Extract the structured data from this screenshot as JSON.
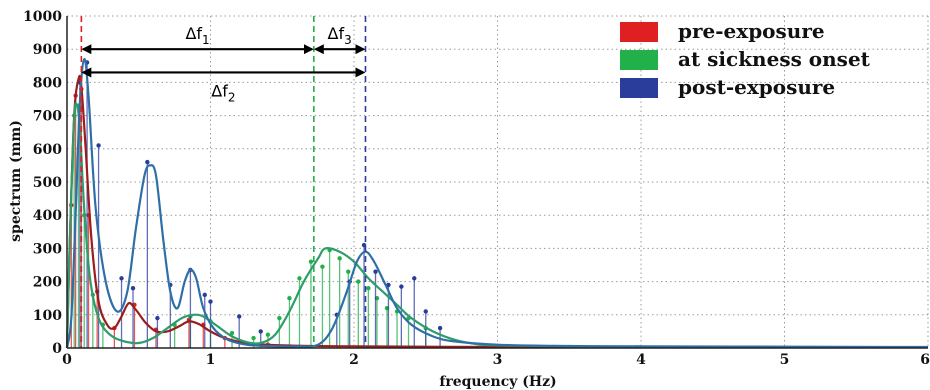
{
  "chart_data": {
    "type": "line",
    "xlabel": "frequency (Hz)",
    "ylabel": "spectrum (mm)",
    "xlim": [
      0,
      6
    ],
    "ylim": [
      0,
      1000
    ],
    "xticks": [
      "0",
      "1",
      "2",
      "3",
      "4",
      "5",
      "6"
    ],
    "yticks": [
      "0",
      "100",
      "200",
      "300",
      "400",
      "500",
      "600",
      "700",
      "800",
      "900",
      "1000"
    ],
    "grid": "dotted",
    "legend_position": "top-right",
    "series": [
      {
        "name": "pre-exposure",
        "color": "#e02020",
        "curve_color": "#9b1c1c",
        "peak_marker_x": 0.1,
        "curve": [
          [
            0,
            0
          ],
          [
            0.02,
            330
          ],
          [
            0.05,
            700
          ],
          [
            0.08,
            810
          ],
          [
            0.1,
            790
          ],
          [
            0.13,
            600
          ],
          [
            0.17,
            330
          ],
          [
            0.22,
            140
          ],
          [
            0.28,
            70
          ],
          [
            0.33,
            60
          ],
          [
            0.38,
            95
          ],
          [
            0.43,
            135
          ],
          [
            0.48,
            115
          ],
          [
            0.55,
            75
          ],
          [
            0.62,
            50
          ],
          [
            0.7,
            50
          ],
          [
            0.78,
            65
          ],
          [
            0.85,
            80
          ],
          [
            0.92,
            72
          ],
          [
            1.0,
            50
          ],
          [
            1.1,
            30
          ],
          [
            1.25,
            15
          ],
          [
            1.5,
            8
          ],
          [
            2.0,
            5
          ],
          [
            3.0,
            3
          ],
          [
            4.0,
            3
          ],
          [
            5.0,
            2
          ],
          [
            6.0,
            2
          ]
        ],
        "stems": [
          [
            0.03,
            430
          ],
          [
            0.06,
            760
          ],
          [
            0.1,
            780
          ],
          [
            0.15,
            400
          ],
          [
            0.21,
            170
          ],
          [
            0.33,
            60
          ],
          [
            0.47,
            130
          ],
          [
            0.62,
            55
          ],
          [
            0.85,
            85
          ],
          [
            0.95,
            70
          ],
          [
            1.1,
            30
          ],
          [
            1.4,
            10
          ]
        ]
      },
      {
        "name": "at sickness onset",
        "color": "#22b04a",
        "curve_color": "#2e9d6a",
        "peak_marker_x": 1.72,
        "curve": [
          [
            0,
            0
          ],
          [
            0.02,
            330
          ],
          [
            0.05,
            690
          ],
          [
            0.07,
            730
          ],
          [
            0.09,
            660
          ],
          [
            0.12,
            420
          ],
          [
            0.16,
            210
          ],
          [
            0.22,
            90
          ],
          [
            0.3,
            40
          ],
          [
            0.4,
            20
          ],
          [
            0.5,
            15
          ],
          [
            0.6,
            30
          ],
          [
            0.7,
            60
          ],
          [
            0.8,
            90
          ],
          [
            0.88,
            100
          ],
          [
            0.95,
            95
          ],
          [
            1.05,
            65
          ],
          [
            1.15,
            35
          ],
          [
            1.25,
            18
          ],
          [
            1.35,
            15
          ],
          [
            1.45,
            40
          ],
          [
            1.55,
            110
          ],
          [
            1.65,
            200
          ],
          [
            1.75,
            270
          ],
          [
            1.8,
            300
          ],
          [
            1.9,
            290
          ],
          [
            2.0,
            260
          ],
          [
            2.1,
            210
          ],
          [
            2.2,
            170
          ],
          [
            2.3,
            130
          ],
          [
            2.4,
            90
          ],
          [
            2.55,
            50
          ],
          [
            2.7,
            25
          ],
          [
            2.85,
            12
          ],
          [
            3.0,
            8
          ],
          [
            3.5,
            5
          ],
          [
            4.0,
            4
          ],
          [
            5.0,
            3
          ],
          [
            6.0,
            2
          ]
        ],
        "stems": [
          [
            0.05,
            700
          ],
          [
            0.08,
            730
          ],
          [
            0.12,
            400
          ],
          [
            0.18,
            160
          ],
          [
            0.25,
            70
          ],
          [
            0.75,
            70
          ],
          [
            0.86,
            95
          ],
          [
            1.0,
            80
          ],
          [
            1.15,
            45
          ],
          [
            1.3,
            30
          ],
          [
            1.4,
            40
          ],
          [
            1.48,
            90
          ],
          [
            1.55,
            150
          ],
          [
            1.62,
            210
          ],
          [
            1.7,
            260
          ],
          [
            1.78,
            245
          ],
          [
            1.83,
            295
          ],
          [
            1.9,
            270
          ],
          [
            1.96,
            230
          ],
          [
            2.03,
            200
          ],
          [
            2.1,
            180
          ],
          [
            2.16,
            150
          ],
          [
            2.23,
            120
          ],
          [
            2.3,
            110
          ],
          [
            2.38,
            90
          ],
          [
            2.5,
            60
          ]
        ]
      },
      {
        "name": "post-exposure",
        "color": "#2b3d9b",
        "curve_color": "#2f6fa8",
        "peak_marker_x": 2.08,
        "curve": [
          [
            0,
            0
          ],
          [
            0.03,
            90
          ],
          [
            0.06,
            400
          ],
          [
            0.09,
            740
          ],
          [
            0.12,
            870
          ],
          [
            0.15,
            760
          ],
          [
            0.2,
            420
          ],
          [
            0.27,
            200
          ],
          [
            0.35,
            110
          ],
          [
            0.42,
            170
          ],
          [
            0.48,
            360
          ],
          [
            0.54,
            520
          ],
          [
            0.58,
            550
          ],
          [
            0.62,
            520
          ],
          [
            0.67,
            330
          ],
          [
            0.72,
            170
          ],
          [
            0.77,
            120
          ],
          [
            0.82,
            200
          ],
          [
            0.86,
            235
          ],
          [
            0.9,
            210
          ],
          [
            0.95,
            120
          ],
          [
            1.02,
            60
          ],
          [
            1.12,
            25
          ],
          [
            1.25,
            10
          ],
          [
            1.4,
            6
          ],
          [
            1.6,
            5
          ],
          [
            1.75,
            10
          ],
          [
            1.85,
            60
          ],
          [
            1.95,
            170
          ],
          [
            2.02,
            260
          ],
          [
            2.08,
            290
          ],
          [
            2.14,
            260
          ],
          [
            2.22,
            190
          ],
          [
            2.3,
            120
          ],
          [
            2.4,
            70
          ],
          [
            2.55,
            35
          ],
          [
            2.7,
            20
          ],
          [
            3.0,
            10
          ],
          [
            3.5,
            6
          ],
          [
            4.0,
            5
          ],
          [
            5.0,
            4
          ],
          [
            6.0,
            3
          ]
        ],
        "stems": [
          [
            0.09,
            800
          ],
          [
            0.14,
            860
          ],
          [
            0.22,
            610
          ],
          [
            0.38,
            210
          ],
          [
            0.46,
            180
          ],
          [
            0.56,
            560
          ],
          [
            0.63,
            90
          ],
          [
            0.72,
            190
          ],
          [
            0.86,
            235
          ],
          [
            0.96,
            160
          ],
          [
            1.0,
            140
          ],
          [
            1.2,
            95
          ],
          [
            1.35,
            50
          ],
          [
            1.88,
            100
          ],
          [
            1.97,
            200
          ],
          [
            2.07,
            310
          ],
          [
            2.15,
            230
          ],
          [
            2.24,
            190
          ],
          [
            2.33,
            185
          ],
          [
            2.42,
            210
          ],
          [
            2.5,
            110
          ],
          [
            2.6,
            60
          ]
        ]
      }
    ],
    "annotations": [
      {
        "label": "Δf",
        "subscript": "1",
        "from_x": 0.1,
        "to_x": 1.72,
        "y": 900
      },
      {
        "label": "Δf",
        "subscript": "3",
        "from_x": 1.72,
        "to_x": 2.08,
        "y": 900
      },
      {
        "label": "Δf",
        "subscript": "2",
        "from_x": 0.1,
        "to_x": 2.08,
        "y": 830
      }
    ]
  }
}
